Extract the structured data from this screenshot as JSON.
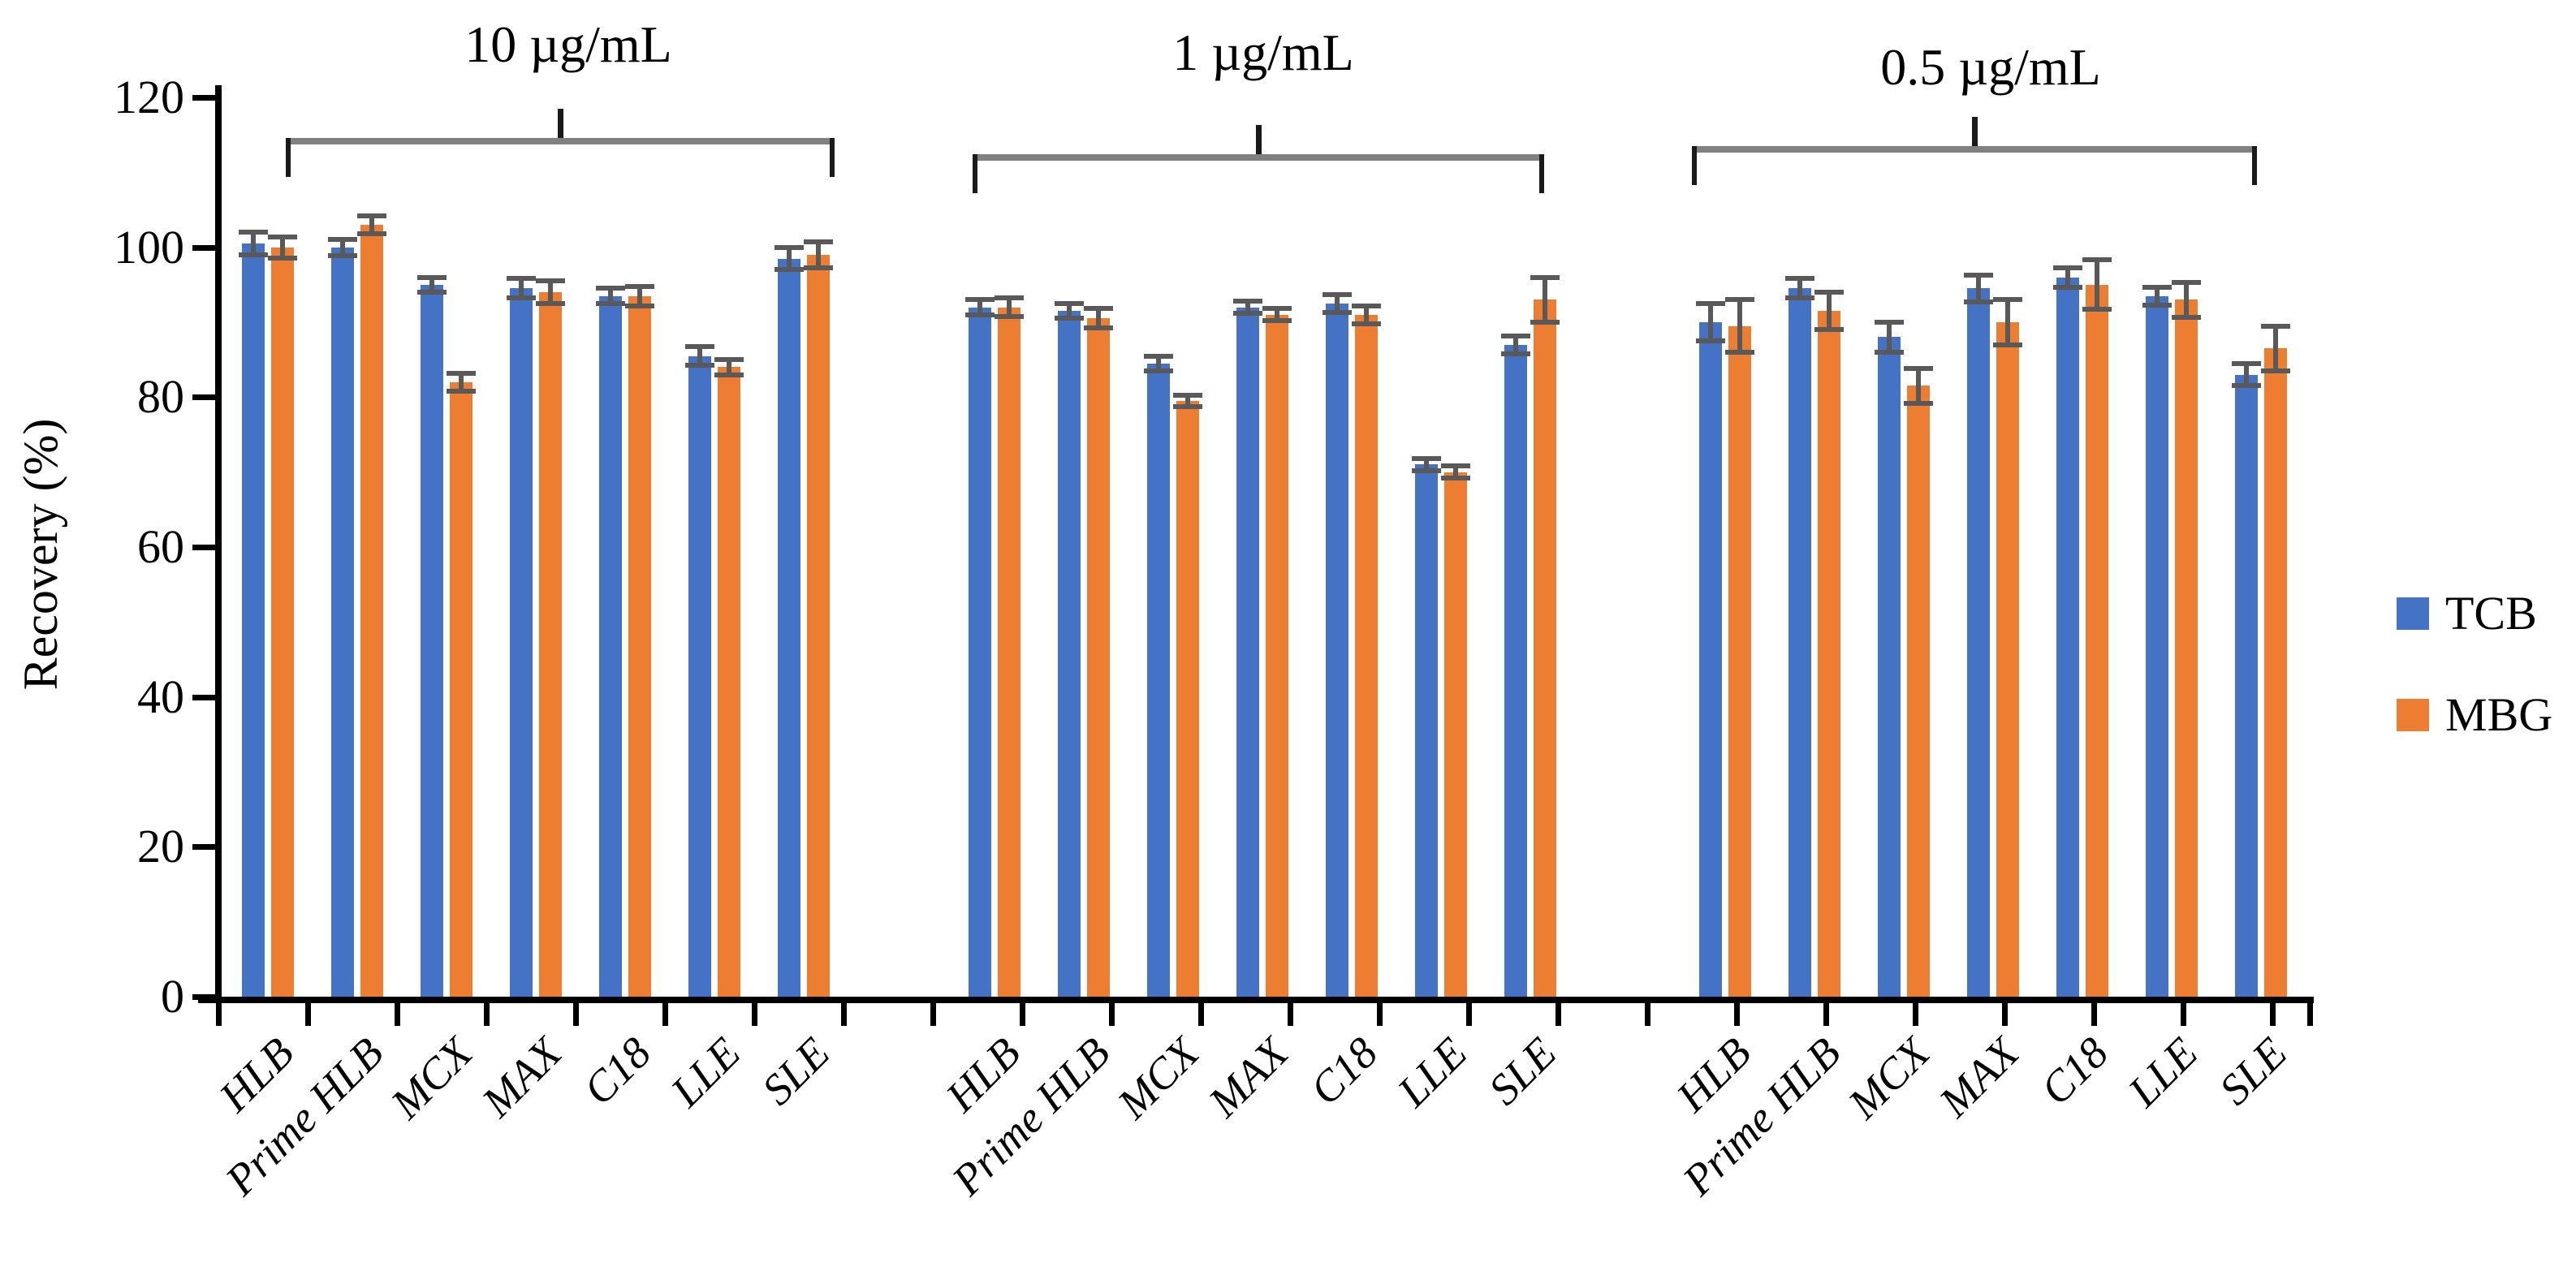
{
  "figure": {
    "ylabel": "Recovery (%)",
    "legend": {
      "tcb_label": "TCB",
      "mbg_label": "MBG"
    }
  },
  "chart_data": {
    "type": "bar",
    "title": "",
    "xlabel": "",
    "ylabel": "Recovery (%)",
    "ylim": [
      0,
      120
    ],
    "y_ticks": [
      0,
      20,
      40,
      60,
      80,
      100,
      120
    ],
    "grid": false,
    "legend_position": "right",
    "series_names": [
      "TCB",
      "MBG"
    ],
    "colors": {
      "TCB": "#4472C4",
      "MBG": "#ED7D31",
      "error_bar": "#595959",
      "axis": "#000000",
      "bracket_line": "#808080",
      "bracket_ends": "#1a1a1a"
    },
    "categories": [
      "HLB",
      "Prime HLB",
      "MCX",
      "MAX",
      "C18",
      "LLE",
      "SLE"
    ],
    "groups": [
      {
        "label": "10 µg/mL",
        "categories": [
          "HLB",
          "Prime HLB",
          "MCX",
          "MAX",
          "C18",
          "LLE",
          "SLE"
        ],
        "series": [
          {
            "name": "TCB",
            "values": [
              100.5,
              100,
              95,
              94.5,
              93.5,
              85.5,
              98.5
            ],
            "errors": [
              1.5,
              1.1,
              1.0,
              1.3,
              1.0,
              1.2,
              1.5
            ]
          },
          {
            "name": "MBG",
            "values": [
              100,
              103,
              82,
              94,
              93.5,
              84,
              99
            ],
            "errors": [
              1.4,
              1.2,
              1.2,
              1.5,
              1.3,
              1.0,
              1.7
            ]
          }
        ]
      },
      {
        "label": "1 µg/mL",
        "categories": [
          "HLB",
          "Prime HLB",
          "MCX",
          "MAX",
          "C18",
          "LLE",
          "SLE"
        ],
        "series": [
          {
            "name": "TCB",
            "values": [
              92,
              91.5,
              84.5,
              92,
              92.5,
              71,
              87
            ],
            "errors": [
              1.0,
              1.0,
              1.0,
              0.8,
              1.2,
              0.8,
              1.2
            ]
          },
          {
            "name": "MBG",
            "values": [
              92,
              90.5,
              79.5,
              91,
              91,
              70,
              93
            ],
            "errors": [
              1.2,
              1.3,
              0.8,
              0.8,
              1.2,
              0.8,
              3.0
            ]
          }
        ]
      },
      {
        "label": "0.5 µg/mL",
        "categories": [
          "HLB",
          "Prime HLB",
          "MCX",
          "MAX",
          "C18",
          "LLE",
          "SLE"
        ],
        "series": [
          {
            "name": "TCB",
            "values": [
              90,
              94.5,
              88,
              94.5,
              96,
              93.5,
              83
            ],
            "errors": [
              2.5,
              1.3,
              2.0,
              1.8,
              1.3,
              1.2,
              1.5
            ]
          },
          {
            "name": "MBG",
            "values": [
              89.5,
              91.5,
              81.5,
              90,
              95,
              93,
              86.5
            ],
            "errors": [
              3.5,
              2.5,
              2.3,
              3.0,
              3.3,
              2.3,
              3.0
            ]
          }
        ]
      }
    ]
  }
}
